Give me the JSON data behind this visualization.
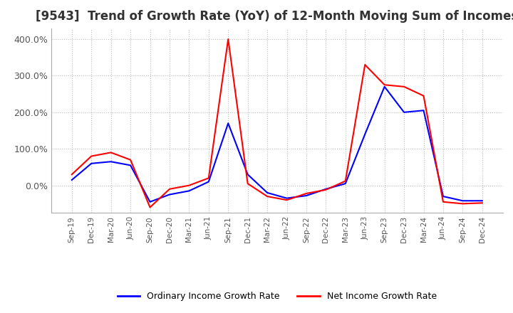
{
  "title": "[9543]  Trend of Growth Rate (YoY) of 12-Month Moving Sum of Incomes",
  "title_fontsize": 12,
  "ylim": [
    -75,
    430
  ],
  "yticks": [
    0,
    100,
    200,
    300,
    400
  ],
  "ytick_labels": [
    "0.0%",
    "100.0%",
    "200.0%",
    "300.0%",
    "400.0%"
  ],
  "background_color": "#ffffff",
  "grid_color": "#bbbbbb",
  "line_blue": "#0000ff",
  "line_red": "#ff0000",
  "legend_labels": [
    "Ordinary Income Growth Rate",
    "Net Income Growth Rate"
  ],
  "x_labels": [
    "Sep-19",
    "Dec-19",
    "Mar-20",
    "Jun-20",
    "Sep-20",
    "Dec-20",
    "Mar-21",
    "Jun-21",
    "Sep-21",
    "Dec-21",
    "Mar-22",
    "Jun-22",
    "Sep-22",
    "Dec-22",
    "Mar-23",
    "Jun-23",
    "Sep-23",
    "Dec-23",
    "Mar-24",
    "Jun-24",
    "Sep-24",
    "Dec-24"
  ],
  "ordinary_income": [
    15,
    60,
    65,
    55,
    -45,
    -25,
    -15,
    10,
    170,
    30,
    -20,
    -35,
    -28,
    -10,
    5,
    140,
    270,
    200,
    205,
    -30,
    -42,
    -42
  ],
  "net_income": [
    30,
    80,
    90,
    70,
    -60,
    -10,
    0,
    20,
    400,
    5,
    -30,
    -40,
    -22,
    -12,
    12,
    330,
    275,
    270,
    245,
    -45,
    -50,
    -48
  ]
}
